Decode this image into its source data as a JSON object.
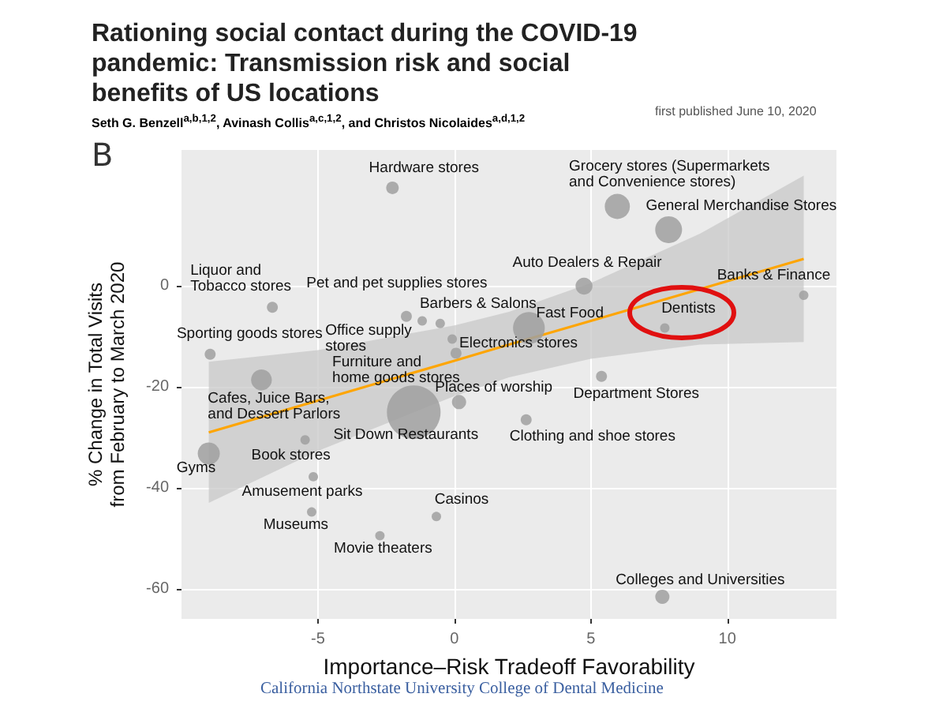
{
  "chart_data": {
    "type": "bubble",
    "title": "Rationing social contact during the COVID-19 pandemic: Transmission risk and social benefits of US locations",
    "subtitle": "Seth G. Benzell$^{a,b,1,2}$, Avinash Collis$^{a,c,1,2}$, and Christos Nicolaides$^{a,d,1,2}$",
    "xlabel": "Importance–Risk Tradeoff Favorability",
    "ylabel": "% Change in Total Visits\nfrom February to March 2020",
    "xlim": [
      -10,
      14
    ],
    "ylim": [
      -66,
      27
    ],
    "xticks": [
      -5,
      0,
      5,
      10
    ],
    "yticks": [
      -60,
      -40,
      -20,
      0
    ],
    "grid": true,
    "series": [
      {
        "color": "#a0a0a0",
        "x": [
          -2.27,
          -6.67,
          -1.76,
          -1.18,
          -0.52,
          -0.08,
          0.06,
          -8.95,
          -7.07,
          0.17,
          -1.49,
          2.63,
          -9.0,
          -5.47,
          -5.17,
          -5.23,
          -2.73,
          -0.66,
          7.62,
          5.97,
          7.85,
          4.75,
          2.73,
          7.71,
          12.8,
          5.39
        ],
        "values": [
          19.5,
          -4.2,
          -6.0,
          -6.9,
          -7.4,
          -10.5,
          -13.3,
          -13.5,
          -18.6,
          -23.0,
          -25.0,
          -26.5,
          -33.2,
          -30.5,
          -37.8,
          -44.8,
          -49.5,
          -45.7,
          -61.6,
          15.8,
          11.2,
          0.0,
          -8.3,
          -8.3,
          -1.8,
          -17.9
        ],
        "sizes": [
          0.055,
          0.042,
          0.042,
          0.031,
          0.031,
          0.031,
          0.042,
          0.042,
          0.15,
          0.07,
          1,
          0.042,
          0.17,
          0.031,
          0.031,
          0.031,
          0.031,
          0.031,
          0.07,
          0.22,
          0.25,
          0.1,
          0.35,
          0.031,
          0.031,
          0.042
        ]
      },
      {
        "type": "line",
        "color": "#ffa500",
        "x": [
          -9,
          -5,
          0,
          2,
          5,
          9,
          12.8
        ],
        "values": [
          -29.0,
          -22.7,
          -14.8,
          -11.6,
          -6.9,
          -0.6,
          5.4
        ],
        "lower": [
          -43.0,
          -32.7,
          -21.8,
          -18.1,
          -14.4,
          -11.6,
          -11.1
        ],
        "upper": [
          -15.0,
          -12.7,
          -7.8,
          -5.1,
          0.6,
          10.4,
          21.9
        ]
      }
    ],
    "annotations": [
      {
        "text": "Hardware stores",
        "x": -2.27,
        "y": 19.5
      },
      {
        "text": "Liquor and\nTobacco stores",
        "x": -6.67,
        "y": -4.2
      },
      {
        "text": "Pet and pet supplies stores",
        "x": -1.76,
        "y": -6.0
      },
      {
        "text": "Office supply\nstores",
        "x": -1.18,
        "y": -6.9
      },
      {
        "text": "Barbers & Salons",
        "x": -0.52,
        "y": -7.4
      },
      {
        "text": "Electronics stores",
        "x": -0.08,
        "y": -10.5
      },
      {
        "text": "Furniture and\nhome goods stores",
        "x": 0.06,
        "y": -13.3
      },
      {
        "text": "Sporting goods stores",
        "x": -8.95,
        "y": -13.5
      },
      {
        "text": "Cafes, Juice Bars,\nand Dessert Parlors",
        "x": -7.07,
        "y": -18.6
      },
      {
        "text": "Places of worship",
        "x": 0.17,
        "y": -23.0
      },
      {
        "text": "Sit Down Restaurants",
        "x": -1.49,
        "y": -25.0
      },
      {
        "text": "Clothing and shoe stores",
        "x": 2.63,
        "y": -26.5
      },
      {
        "text": "Gyms",
        "x": -9.0,
        "y": -33.2
      },
      {
        "text": "Book stores",
        "x": -5.47,
        "y": -30.5
      },
      {
        "text": "Amusement parks",
        "x": -5.17,
        "y": -37.8
      },
      {
        "text": "Museums",
        "x": -5.23,
        "y": -44.8
      },
      {
        "text": "Movie theaters",
        "x": -2.73,
        "y": -49.5
      },
      {
        "text": "Casinos",
        "x": -0.66,
        "y": -45.7
      },
      {
        "text": "Colleges and Universities",
        "x": 7.62,
        "y": -61.6
      },
      {
        "text": "Grocery stores (Supermarkets\nand Convenience stores)",
        "x": 5.97,
        "y": 15.8
      },
      {
        "text": "General Merchandise Stores",
        "x": 7.85,
        "y": 11.2
      },
      {
        "text": "Auto Dealers & Repair",
        "x": 4.75,
        "y": 0.0
      },
      {
        "text": "Fast Food",
        "x": 2.73,
        "y": -8.3
      },
      {
        "text": "Dentists",
        "x": 7.71,
        "y": -8.3
      },
      {
        "text": "Banks & Finance",
        "x": 12.8,
        "y": -1.8
      },
      {
        "text": "Department Stores",
        "x": 5.39,
        "y": -17.9
      },
      "B",
      "first published June 10, 2020",
      "California Northstate University College of Dental Medicine"
    ]
  }
}
